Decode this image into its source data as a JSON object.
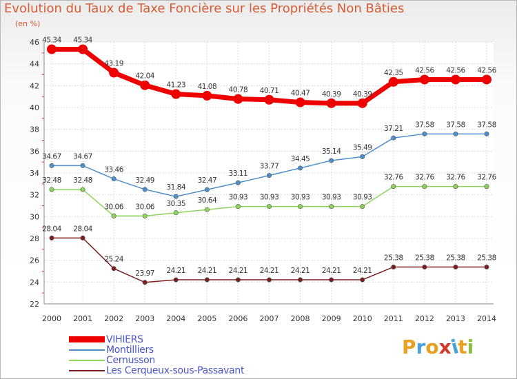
{
  "header": {
    "title": "Evolution du Taux de Taxe Foncière sur les Propriétés Non Bâties",
    "unit": "(en %)"
  },
  "logo": {
    "text": "Proxiti",
    "colors": [
      "#e8a021",
      "#4aa0d8",
      "#e8a021",
      "#d43a2a",
      "#4aa0d8",
      "#e8a021",
      "#8ac040"
    ]
  },
  "chart_data": {
    "type": "line",
    "title": "Evolution du Taux de Taxe Foncière sur les Propriétés Non Bâties",
    "ylabel": "(en %)",
    "xlabel": "",
    "ylim": [
      22,
      46
    ],
    "yticks": [
      22,
      24,
      26,
      28,
      30,
      32,
      34,
      36,
      38,
      40,
      42,
      44,
      46
    ],
    "grid": true,
    "legend": "bottom-left",
    "x": [
      "2000",
      "2001",
      "2002",
      "2003",
      "2004",
      "2005",
      "2006",
      "2007",
      "2008",
      "2009",
      "2010",
      "2011",
      "2012",
      "2013",
      "2014"
    ],
    "series": [
      {
        "name": "VIHIERS",
        "color": "#ee0000",
        "values": [
          45.34,
          45.34,
          43.19,
          42.04,
          41.23,
          41.08,
          40.78,
          40.71,
          40.47,
          40.39,
          40.39,
          42.35,
          42.56,
          42.56,
          42.56
        ],
        "labels": [
          "45.34",
          "45.34",
          "43.19",
          "42.04",
          "41.23",
          "41.08",
          "40.78",
          "40.71",
          "40.47",
          "40.39",
          "40.39",
          "42.35",
          "42.56",
          "42.56",
          "42.56"
        ]
      },
      {
        "name": "Montilliers",
        "color": "#4e8fca",
        "values": [
          34.67,
          34.67,
          33.46,
          32.49,
          31.84,
          32.47,
          33.11,
          33.77,
          34.45,
          35.14,
          35.49,
          37.21,
          37.58,
          37.58,
          37.58
        ],
        "labels": [
          "34.67",
          "34.67",
          "33.46",
          "32.49",
          "31.84",
          "32.47",
          "33.11",
          "33.77",
          "34.45",
          "35.14",
          "35.49",
          "37.21",
          "37.58",
          "37.58",
          "37.58"
        ]
      },
      {
        "name": "Cernusson",
        "color": "#8fd45a",
        "values": [
          32.48,
          32.48,
          30.06,
          30.06,
          30.35,
          30.64,
          30.93,
          30.93,
          30.93,
          30.93,
          30.93,
          32.76,
          32.76,
          32.76,
          32.76
        ],
        "labels": [
          "32.48",
          "32.48",
          "30.06",
          "30.06",
          "30.35",
          "30.64",
          "30.93",
          "30.93",
          "30.93",
          "30.93",
          "30.93",
          "32.76",
          "32.76",
          "32.76",
          "32.76"
        ]
      },
      {
        "name": "Les Cerqueux-sous-Passavant",
        "color": "#7a1e22",
        "values": [
          28.04,
          28.04,
          25.24,
          23.97,
          24.21,
          24.21,
          24.21,
          24.21,
          24.21,
          24.21,
          24.21,
          25.38,
          25.38,
          25.38,
          25.38
        ],
        "labels": [
          "28.04",
          "28.04",
          "25.24",
          "23.97",
          "24.21",
          "24.21",
          "24.21",
          "24.21",
          "24.21",
          "24.21",
          "24.21",
          "25.38",
          "25.38",
          "25.38",
          "25.38"
        ]
      }
    ]
  }
}
